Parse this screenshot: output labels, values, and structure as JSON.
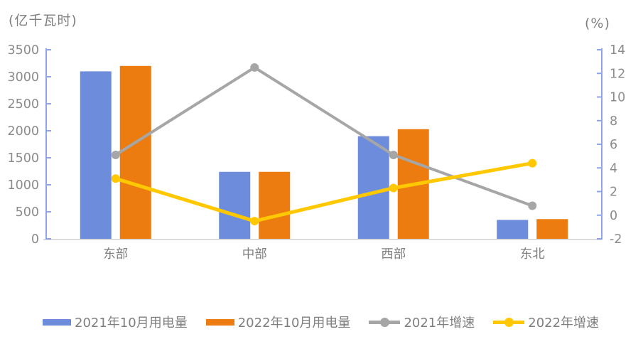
{
  "chart_data": {
    "type": "combo-bar-line",
    "title": "",
    "categories": [
      "东部",
      "中部",
      "西部",
      "东北"
    ],
    "category_slugs": [
      "east",
      "central",
      "west",
      "northeast"
    ],
    "series": [
      {
        "name": "2021年10月用电量",
        "type": "bar",
        "axis": "left",
        "color": "#6d8cdb",
        "values": [
          3100,
          1240,
          1900,
          350
        ]
      },
      {
        "name": "2022年10月用电量",
        "type": "bar",
        "axis": "left",
        "color": "#ec7c10",
        "values": [
          3200,
          1240,
          2030,
          365
        ]
      },
      {
        "name": "2021年增速",
        "type": "line",
        "axis": "right",
        "color": "#a6a6a6",
        "values": [
          5.1,
          12.5,
          5.1,
          0.8
        ]
      },
      {
        "name": "2022年增速",
        "type": "line",
        "axis": "right",
        "color": "#ffc800",
        "values": [
          3.1,
          -0.5,
          2.3,
          4.4
        ]
      }
    ],
    "left_axis": {
      "title": "(亿千瓦时)",
      "min": 0,
      "max": 3500,
      "step": 500,
      "ticks": [
        "3500",
        "3000",
        "2500",
        "2000",
        "1500",
        "1000",
        "500",
        "0"
      ]
    },
    "right_axis": {
      "title": "(%)",
      "min": -2,
      "max": 14,
      "step": 2,
      "ticks": [
        "14",
        "12",
        "10",
        "8",
        "6",
        "4",
        "2",
        "0",
        "-2"
      ]
    },
    "legend_position": "bottom",
    "grid": false,
    "style": {
      "value_axis_line_color": "#8ea3e8",
      "category_axis_line_color": "#dcdcdc",
      "tick_label_color": "#8c8c8c",
      "category_label_color": "#7f7f7f",
      "legend_text_color": "#7f7f7f"
    }
  }
}
